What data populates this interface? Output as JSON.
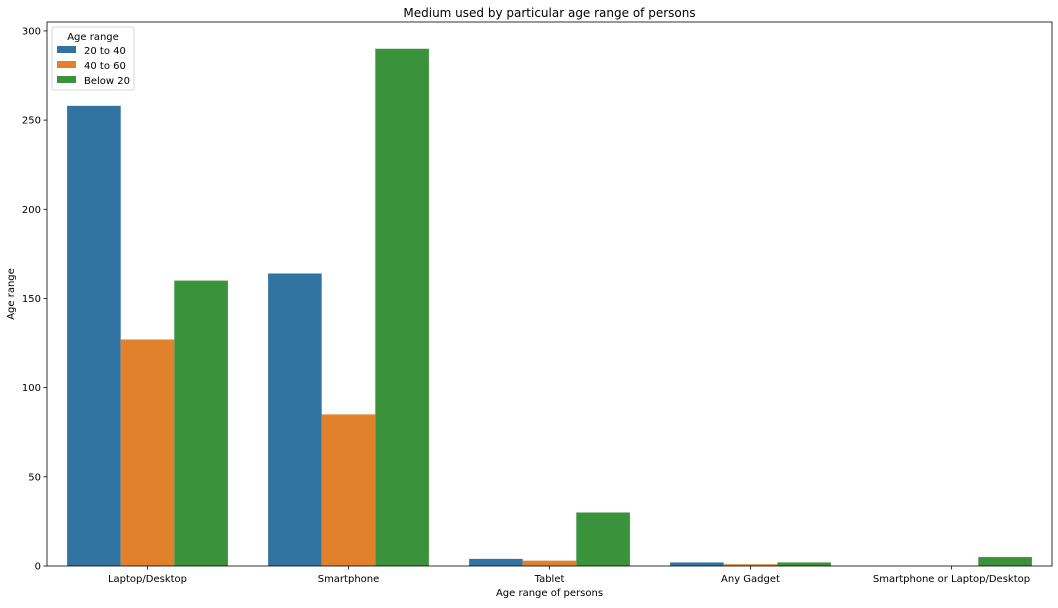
{
  "chart_data": {
    "type": "bar",
    "title": "Medium used by particular age range of persons",
    "xlabel": "Age range of persons",
    "ylabel": "Age range",
    "categories": [
      "Laptop/Desktop",
      "Smartphone",
      "Tablet",
      "Any Gadget",
      "Smartphone or Laptop/Desktop"
    ],
    "series": [
      {
        "name": "20 to 40",
        "color": "#3274a1",
        "values": [
          258,
          164,
          4,
          2,
          0
        ]
      },
      {
        "name": "40 to 60",
        "color": "#e1812c",
        "values": [
          127,
          85,
          3,
          1,
          0
        ]
      },
      {
        "name": "Below 20",
        "color": "#3a923a",
        "values": [
          160,
          290,
          30,
          2,
          5
        ]
      }
    ],
    "ylim": [
      0,
      305
    ],
    "yticks": [
      0,
      50,
      100,
      150,
      200,
      250,
      300
    ],
    "grid": false,
    "legend": {
      "title": "Age range",
      "position": "top-left"
    }
  }
}
